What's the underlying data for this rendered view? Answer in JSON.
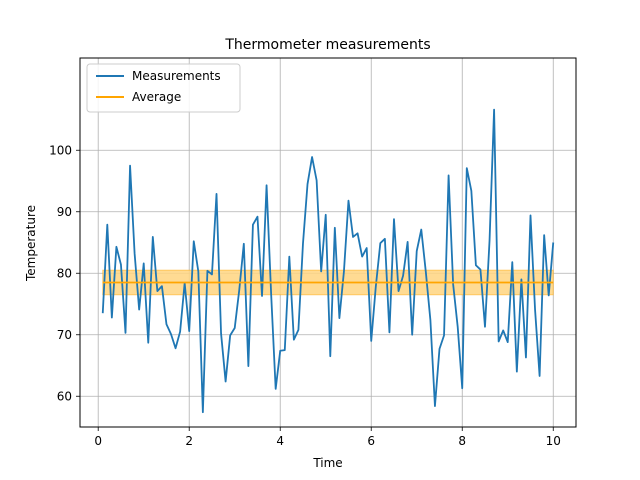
{
  "chart_data": {
    "type": "line",
    "title": "Thermometer measurements",
    "xlabel": "Time",
    "ylabel": "Temperature",
    "xlim": [
      -0.4,
      10.5
    ],
    "ylim": [
      55,
      115
    ],
    "xticks": [
      0,
      2,
      4,
      6,
      8,
      10
    ],
    "yticks": [
      60,
      70,
      80,
      90,
      100
    ],
    "xtick_labels": [
      "0",
      "2",
      "4",
      "6",
      "8",
      "10"
    ],
    "ytick_labels": [
      "60",
      "70",
      "80",
      "90",
      "100"
    ],
    "grid": true,
    "legend_position": "top-left",
    "colors": {
      "measurements": "#1f77b4",
      "average": "#ffa500",
      "band": "#ffd580"
    },
    "series": [
      {
        "name": "Measurements",
        "x": [
          0.1,
          0.2,
          0.3,
          0.4,
          0.5,
          0.6,
          0.7,
          0.8,
          0.9,
          1.0,
          1.1,
          1.2,
          1.3,
          1.4,
          1.5,
          1.6,
          1.7,
          1.8,
          1.9,
          2.0,
          2.1,
          2.2,
          2.3,
          2.4,
          2.5,
          2.6,
          2.7,
          2.8,
          2.9,
          3.0,
          3.1,
          3.2,
          3.3,
          3.4,
          3.5,
          3.6,
          3.7,
          3.8,
          3.9,
          4.0,
          4.1,
          4.2,
          4.3,
          4.4,
          4.5,
          4.6,
          4.7,
          4.8,
          4.9,
          5.0,
          5.1,
          5.2,
          5.3,
          5.4,
          5.5,
          5.6,
          5.7,
          5.8,
          5.9,
          6.0,
          6.1,
          6.2,
          6.3,
          6.4,
          6.5,
          6.6,
          6.7,
          6.8,
          6.9,
          7.0,
          7.1,
          7.2,
          7.3,
          7.4,
          7.5,
          7.6,
          7.7,
          7.8,
          7.9,
          8.0,
          8.1,
          8.2,
          8.3,
          8.4,
          8.5,
          8.6,
          8.7,
          8.8,
          8.9,
          9.0,
          9.1,
          9.2,
          9.3,
          9.4,
          9.5,
          9.6,
          9.7,
          9.8,
          9.9,
          10.0
        ],
        "y": [
          73.5,
          87.9,
          72.8,
          84.3,
          81.4,
          70.3,
          97.5,
          83.2,
          74.1,
          81.6,
          68.7,
          85.9,
          77.1,
          77.9,
          71.7,
          70.1,
          67.8,
          70.5,
          78.4,
          70.6,
          85.2,
          80.3,
          57.4,
          80.4,
          79.8,
          92.9,
          70.2,
          62.4,
          69.9,
          71.1,
          77.3,
          84.8,
          64.9,
          87.9,
          89.2,
          76.3,
          94.3,
          76.7,
          61.2,
          67.4,
          67.5,
          82.7,
          69.2,
          70.8,
          84.8,
          94.5,
          98.9,
          95.1,
          80.3,
          89.5,
          66.5,
          87.4,
          72.7,
          80.3,
          91.8,
          85.9,
          86.5,
          82.7,
          84.1,
          69.0,
          77.8,
          84.9,
          85.6,
          70.4,
          88.8,
          77.1,
          79.6,
          85.1,
          70.0,
          83.6,
          87.1,
          80.2,
          72.4,
          58.4,
          67.7,
          69.9,
          95.9,
          78.2,
          71.3,
          61.3,
          97.1,
          93.4,
          81.3,
          80.6,
          71.3,
          85.3,
          106.6,
          68.9,
          70.7,
          68.8,
          81.8,
          64.0,
          79.0,
          66.3,
          89.4,
          74.1,
          63.3,
          86.2,
          76.4,
          85.0
        ]
      },
      {
        "name": "Average",
        "x": [
          0.1,
          10.0
        ],
        "y": [
          78.5,
          78.5
        ],
        "band": [
          76.5,
          80.5
        ]
      }
    ]
  }
}
